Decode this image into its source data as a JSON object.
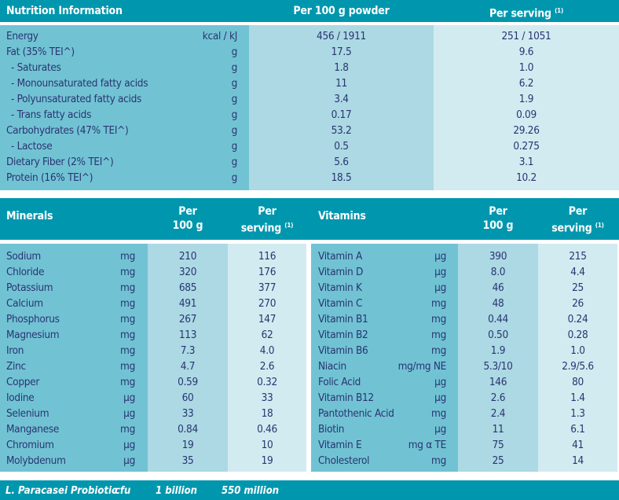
{
  "nutrition": {
    "title": "Nutrition Information",
    "col1": "Per 100 g powder",
    "col2": "Per serving",
    "col2_sup": "(1)",
    "rows": [
      [
        "Energy",
        "kcal / kJ",
        "456 / 1911",
        "251 / 1051",
        0
      ],
      [
        "Fat (35% TEI^)",
        "g",
        "17.5",
        "9.6",
        0
      ],
      [
        "- Saturates",
        "g",
        "1.8",
        "1.0",
        1
      ],
      [
        "- Monounsaturated fatty acids",
        "g",
        "11",
        "6.2",
        1
      ],
      [
        "- Polyunsaturated fatty acids",
        "g",
        "3.4",
        "1.9",
        1
      ],
      [
        "- Trans fatty acids",
        "g",
        "0.17",
        "0.09",
        1
      ],
      [
        "Carbohydrates (47% TEI^)",
        "g",
        "53.2",
        "29.26",
        0
      ],
      [
        "- Lactose",
        "g",
        "0.5",
        "0.275",
        1
      ],
      [
        "Dietary Fiber (2% TEI^)",
        "g",
        "5.6",
        "3.1",
        0
      ],
      [
        "Protein (16% TEI^)",
        "g",
        "18.5",
        "10.2",
        0
      ]
    ]
  },
  "minerals": {
    "title": "Minerals",
    "col1_a": "Per",
    "col1_b": "100 g",
    "col2_a": "Per",
    "col2_b": "serving",
    "col2_sup": "(1)",
    "rows": [
      [
        "Sodium",
        "mg",
        "210",
        "116"
      ],
      [
        "Chloride",
        "mg",
        "320",
        "176"
      ],
      [
        "Potassium",
        "mg",
        "685",
        "377"
      ],
      [
        "Calcium",
        "mg",
        "491",
        "270"
      ],
      [
        "Phosphorus",
        "mg",
        "267",
        "147"
      ],
      [
        "Magnesium",
        "mg",
        "113",
        "62"
      ],
      [
        "Iron",
        "mg",
        "7.3",
        "4.0"
      ],
      [
        "Zinc",
        "mg",
        "4.7",
        "2.6"
      ],
      [
        "Copper",
        "mg",
        "0.59",
        "0.32"
      ],
      [
        "Iodine",
        "µg",
        "60",
        "33"
      ],
      [
        "Selenium",
        "µg",
        "33",
        "18"
      ],
      [
        "Manganese",
        "mg",
        "0.84",
        "0.46"
      ],
      [
        "Chromium",
        "µg",
        "19",
        "10"
      ],
      [
        "Molybdenum",
        "µg",
        "35",
        "19"
      ]
    ]
  },
  "vitamins": {
    "title": "Vitamins",
    "col1_a": "Per",
    "col1_b": "100 g",
    "col2_a": "Per",
    "col2_b": "serving",
    "col2_sup": "(1)",
    "rows": [
      [
        "Vitamin A",
        "µg",
        "390",
        "215"
      ],
      [
        "Vitamin D",
        "µg",
        "8.0",
        "4.4"
      ],
      [
        "Vitamin K",
        "µg",
        "46",
        "25"
      ],
      [
        "Vitamin C",
        "mg",
        "48",
        "26"
      ],
      [
        "Vitamin B1",
        "mg",
        "0.44",
        "0.24"
      ],
      [
        "Vitamin B2",
        "mg",
        "0.50",
        "0.28"
      ],
      [
        "Vitamin B6",
        "mg",
        "1.9",
        "1.0"
      ],
      [
        "Niacin",
        "mg/mg NE",
        "5.3/10",
        "2.9/5.6"
      ],
      [
        "Folic Acid",
        "µg",
        "146",
        "80"
      ],
      [
        "Vitamin B12",
        "µg",
        "2.6",
        "1.4"
      ],
      [
        "Pantothenic Acid",
        "mg",
        "2.4",
        "1.3"
      ],
      [
        "Biotin",
        "µg",
        "11",
        "6.1"
      ],
      [
        "Vitamin E",
        "mg α TE",
        "75",
        "41"
      ],
      [
        "Cholesterol",
        "mg",
        "25",
        "14"
      ]
    ]
  },
  "probiotic": {
    "name": "L. Paracasei Probiotic",
    "unit": "cfu",
    "per100": "1 billion",
    "serving": "550 million"
  }
}
